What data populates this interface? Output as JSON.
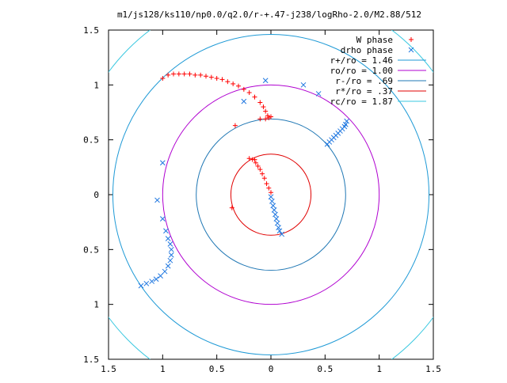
{
  "chart_data": {
    "type": "scatter",
    "title": "m1/js128/ks110/np0.0/q2.0/r-+.47-j238/logRho-2.0/M2.88/512",
    "xlim": [
      1.5,
      -1.5
    ],
    "ylim": [
      -1.5,
      1.5
    ],
    "x_tick_labels": [
      {
        "value": 1.5,
        "label": "1.5"
      },
      {
        "value": 1.0,
        "label": "1"
      },
      {
        "value": 0.5,
        "label": "0.5"
      },
      {
        "value": 0.0,
        "label": "0"
      },
      {
        "value": -0.5,
        "label": "0.5"
      },
      {
        "value": -1.0,
        "label": "1"
      },
      {
        "value": -1.5,
        "label": "1.5"
      }
    ],
    "y_tick_labels": [
      {
        "value": 1.5,
        "label": "1.5"
      },
      {
        "value": 1.0,
        "label": "1"
      },
      {
        "value": 0.5,
        "label": "0.5"
      },
      {
        "value": 0.0,
        "label": "0"
      },
      {
        "value": -0.5,
        "label": "0.5"
      },
      {
        "value": -1.0,
        "label": "1"
      },
      {
        "value": -1.5,
        "label": "1.5"
      }
    ],
    "grid": false,
    "legend_position": "top-right",
    "series": [
      {
        "name": "W phase",
        "marker": "+",
        "color": "#ff0000",
        "points": [
          [
            1.0,
            1.06
          ],
          [
            0.95,
            1.09
          ],
          [
            0.9,
            1.1
          ],
          [
            0.85,
            1.1
          ],
          [
            0.8,
            1.1
          ],
          [
            0.75,
            1.1
          ],
          [
            0.7,
            1.09
          ],
          [
            0.65,
            1.09
          ],
          [
            0.6,
            1.08
          ],
          [
            0.55,
            1.07
          ],
          [
            0.5,
            1.06
          ],
          [
            0.45,
            1.05
          ],
          [
            0.4,
            1.03
          ],
          [
            0.35,
            1.01
          ],
          [
            0.3,
            0.99
          ],
          [
            0.25,
            0.96
          ],
          [
            0.2,
            0.93
          ],
          [
            0.15,
            0.89
          ],
          [
            0.1,
            0.84
          ],
          [
            0.07,
            0.8
          ],
          [
            0.05,
            0.76
          ],
          [
            0.03,
            0.72
          ],
          [
            0.02,
            0.7
          ],
          [
            0.0,
            0.71
          ],
          [
            0.05,
            0.69
          ],
          [
            0.1,
            0.69
          ],
          [
            0.33,
            0.63
          ],
          [
            0.2,
            0.33
          ],
          [
            0.17,
            0.32
          ],
          [
            0.15,
            0.32
          ],
          [
            0.14,
            0.29
          ],
          [
            0.12,
            0.26
          ],
          [
            0.1,
            0.23
          ],
          [
            0.08,
            0.19
          ],
          [
            0.06,
            0.15
          ],
          [
            0.04,
            0.1
          ],
          [
            0.02,
            0.06
          ],
          [
            0.0,
            0.02
          ],
          [
            0.36,
            -0.12
          ]
        ]
      },
      {
        "name": "drho phase",
        "marker": "x",
        "color": "#1f77e0",
        "points": [
          [
            -0.7,
            0.67
          ],
          [
            -0.69,
            0.64
          ],
          [
            -0.68,
            0.62
          ],
          [
            -0.66,
            0.6
          ],
          [
            -0.64,
            0.58
          ],
          [
            -0.62,
            0.56
          ],
          [
            -0.6,
            0.54
          ],
          [
            -0.58,
            0.52
          ],
          [
            -0.56,
            0.5
          ],
          [
            -0.54,
            0.48
          ],
          [
            -0.52,
            0.46
          ],
          [
            -0.3,
            1.0
          ],
          [
            -0.44,
            0.92
          ],
          [
            0.25,
            0.85
          ],
          [
            0.05,
            1.04
          ],
          [
            0.0,
            -0.02
          ],
          [
            -0.01,
            -0.06
          ],
          [
            -0.02,
            -0.1
          ],
          [
            -0.03,
            -0.14
          ],
          [
            -0.04,
            -0.18
          ],
          [
            -0.05,
            -0.22
          ],
          [
            -0.06,
            -0.26
          ],
          [
            -0.07,
            -0.3
          ],
          [
            -0.08,
            -0.33
          ],
          [
            -0.1,
            -0.36
          ],
          [
            1.0,
            0.29
          ],
          [
            1.05,
            -0.05
          ],
          [
            1.0,
            -0.22
          ],
          [
            0.97,
            -0.33
          ],
          [
            0.95,
            -0.4
          ],
          [
            0.93,
            -0.45
          ],
          [
            0.92,
            -0.5
          ],
          [
            0.92,
            -0.55
          ],
          [
            0.93,
            -0.6
          ],
          [
            0.95,
            -0.65
          ],
          [
            0.98,
            -0.7
          ],
          [
            1.02,
            -0.74
          ],
          [
            1.06,
            -0.77
          ],
          [
            1.1,
            -0.79
          ],
          [
            1.15,
            -0.81
          ],
          [
            1.2,
            -0.83
          ]
        ]
      }
    ],
    "circles": [
      {
        "name": "r+/ro = 1.46",
        "radius": 1.46,
        "color": "#1f9ad6"
      },
      {
        "name": "ro/ro = 1.00",
        "radius": 1.0,
        "color": "#b000d0"
      },
      {
        "name": "r-/ro = .69",
        "radius": 0.69,
        "color": "#1f77b4"
      },
      {
        "name": "r*/ro = .37",
        "radius": 0.37,
        "color": "#e00000"
      },
      {
        "name": "rc/ro = 1.87",
        "radius": 1.87,
        "color": "#3ac8e0"
      }
    ]
  }
}
